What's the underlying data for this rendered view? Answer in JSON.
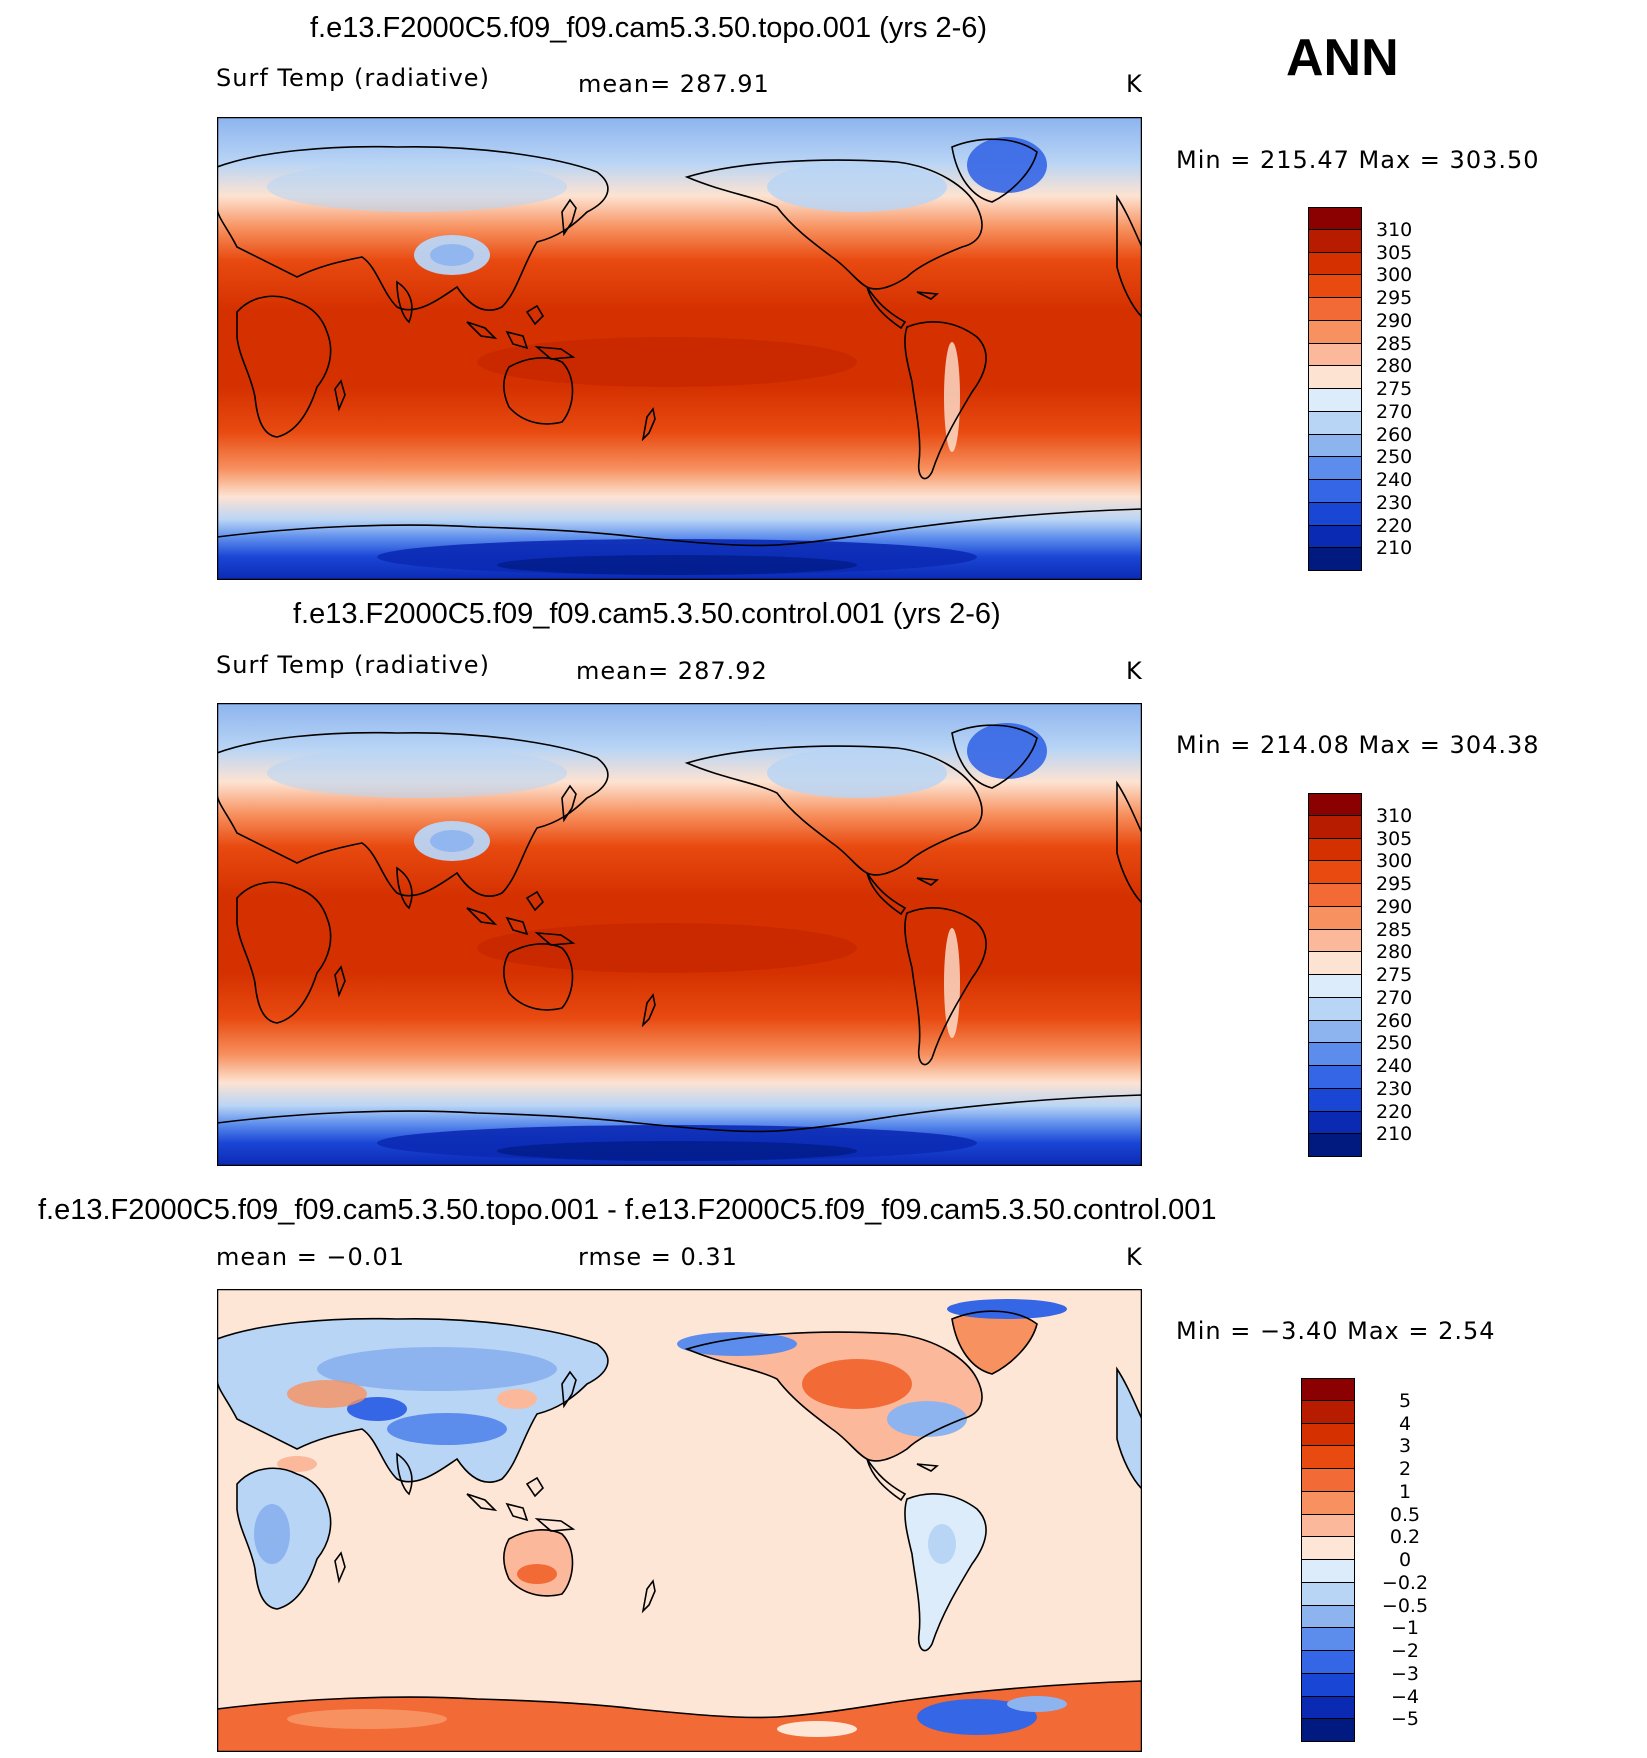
{
  "season": "ANN",
  "units": "K",
  "panels": [
    {
      "title": "f.e13.F2000C5.f09_f09.cam5.3.50.topo.001 (yrs 2-6)",
      "left_label": "Surf Temp (radiative)",
      "mid_label": "mean= 287.91",
      "right_label": "K",
      "minmax": "Min = 215.47 Max = 303.50"
    },
    {
      "title": "f.e13.F2000C5.f09_f09.cam5.3.50.control.001 (yrs 2-6)",
      "left_label": "Surf Temp (radiative)",
      "mid_label": "mean= 287.92",
      "right_label": "K",
      "minmax": "Min = 214.08 Max = 304.38"
    },
    {
      "title": "f.e13.F2000C5.f09_f09.cam5.3.50.topo.001 - f.e13.F2000C5.f09_f09.cam5.3.50.control.001",
      "left_label": "mean = −0.01",
      "mid_label": "rmse = 0.31",
      "right_label": "K",
      "minmax": "Min = −3.40 Max = 2.54"
    }
  ],
  "colorbars": {
    "absolute": {
      "labels": [
        "310",
        "305",
        "300",
        "295",
        "290",
        "285",
        "280",
        "275",
        "270",
        "260",
        "250",
        "240",
        "230",
        "220",
        "210"
      ],
      "colors": [
        "#8b0000",
        "#b81c00",
        "#d43000",
        "#e84a10",
        "#f26a35",
        "#f7915f",
        "#fbb89a",
        "#fde3d2",
        "#ddecfb",
        "#b9d5f5",
        "#8db4ef",
        "#5c8cec",
        "#3566e6",
        "#1a46d6",
        "#0b2ab4",
        "#001a80"
      ]
    },
    "difference": {
      "labels": [
        "5",
        "4",
        "3",
        "2",
        "1",
        "0.5",
        "0.2",
        "0",
        "−0.2",
        "−0.5",
        "−1",
        "−2",
        "−3",
        "−4",
        "−5"
      ],
      "colors": [
        "#8b0000",
        "#b81c00",
        "#d43000",
        "#e84a10",
        "#f26a35",
        "#f7915f",
        "#fbb89a",
        "#fde6d6",
        "#ddecfb",
        "#b9d5f5",
        "#8db4ef",
        "#5c8cec",
        "#3566e6",
        "#1a46d6",
        "#0b2ab4",
        "#001a80"
      ]
    }
  }
}
